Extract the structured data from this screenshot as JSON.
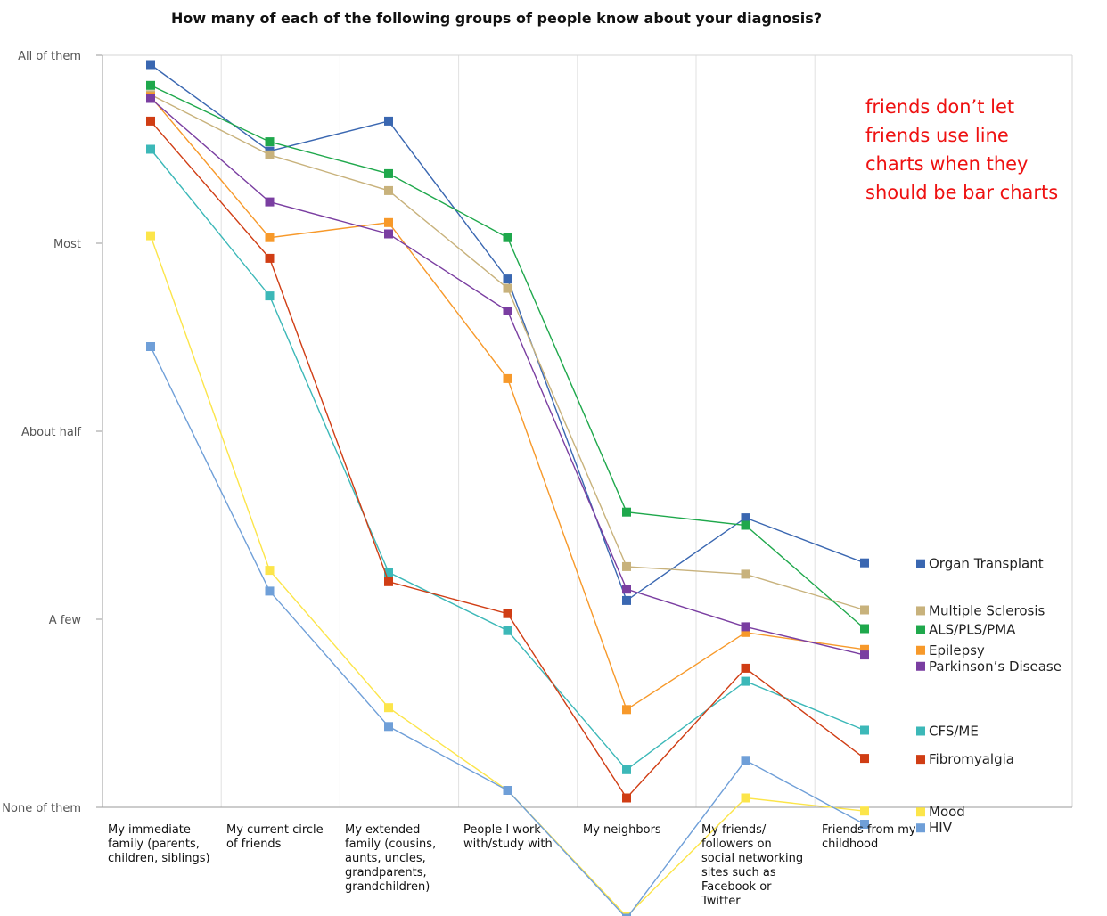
{
  "chart_data": {
    "type": "line",
    "title": "How many of each of the following groups of people know about your diagnosis?",
    "xlabel": "",
    "ylabel": "",
    "y_ticks": [
      "None of them",
      "A few",
      "About half",
      "Most",
      "All of them"
    ],
    "ylim": [
      0,
      4
    ],
    "categories": [
      "My immediate\nfamily (parents,\nchildren, siblings)",
      "My current circle\nof friends",
      "My extended\nfamily (cousins,\naunts, uncles,\ngrandparents,\ngrandchildren)",
      "People I work\nwith/study with",
      "My neighbors",
      "My friends/\nfollowers on\nsocial networking\nsites such as\nFacebook or\nTwitter",
      "Friends from my\nchildhood"
    ],
    "legend_position": "right",
    "grid": "vertical",
    "series": [
      {
        "name": "Organ Transplant",
        "color": "#3a67b1",
        "values": [
          3.95,
          3.49,
          3.65,
          2.81,
          1.1,
          1.54,
          1.3
        ]
      },
      {
        "name": "Multiple Sclerosis",
        "color": "#c8b27c",
        "values": [
          3.79,
          3.47,
          3.28,
          2.76,
          1.28,
          1.24,
          1.05
        ]
      },
      {
        "name": "ALS/PLS/PMA",
        "color": "#1fa84c",
        "values": [
          3.84,
          3.54,
          3.37,
          3.03,
          1.57,
          1.5,
          0.95
        ]
      },
      {
        "name": "Epilepsy",
        "color": "#f7992a",
        "values": [
          3.78,
          3.03,
          3.11,
          2.28,
          0.52,
          0.93,
          0.84
        ]
      },
      {
        "name": "Parkinson’s Disease",
        "color": "#7a3ea1",
        "values": [
          3.77,
          3.22,
          3.05,
          2.64,
          1.16,
          0.96,
          0.81
        ]
      },
      {
        "name": "CFS/ME",
        "color": "#3cb8b8",
        "values": [
          3.5,
          2.72,
          1.25,
          0.94,
          0.2,
          0.67,
          0.41
        ]
      },
      {
        "name": "Fibromyalgia",
        "color": "#d03d14",
        "values": [
          3.65,
          2.92,
          1.2,
          1.03,
          0.05,
          0.74,
          0.26
        ]
      },
      {
        "name": "Mood",
        "color": "#fce54a",
        "values": [
          3.04,
          1.26,
          0.53,
          0.09,
          -0.58,
          0.05,
          -0.02
        ]
      },
      {
        "name": "HIV",
        "color": "#6f9fd8",
        "values": [
          2.45,
          1.15,
          0.43,
          0.09,
          -0.59,
          0.25,
          -0.09
        ]
      }
    ],
    "annotation": "friends don’t let friends use line charts when they should be bar charts"
  }
}
